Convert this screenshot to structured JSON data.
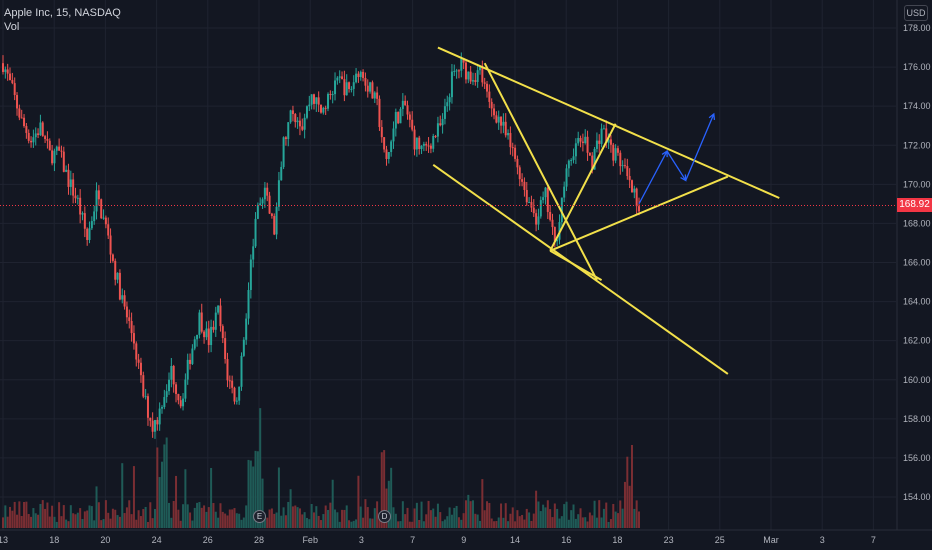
{
  "legend": {
    "symbol": "Apple Inc, 15, NASDAQ",
    "indicator": "Vol"
  },
  "currency": "USD",
  "last_price_tag": "168.92",
  "events": [
    {
      "letter": "E"
    },
    {
      "letter": "D"
    }
  ],
  "colors": {
    "background": "#131722",
    "grid": "#1f2330",
    "up": "#26a69a",
    "down": "#ef5350",
    "volume_up": "#1f5b57",
    "volume_down": "#7a2e33",
    "pattern_lines": "#f2e04a",
    "projection_arrows": "#2962ff",
    "last_price_line": "#f23645"
  },
  "chart_data": {
    "type": "candlestick",
    "title": "Apple Inc, 15, NASDAQ",
    "y_axis": {
      "position": "right",
      "ticks": [
        154,
        156,
        158,
        160,
        162,
        164,
        166,
        168,
        170,
        172,
        174,
        176,
        178
      ],
      "tick_labels": [
        "154.00",
        "156.00",
        "158.00",
        "160.00",
        "162.00",
        "164.00",
        "166.00",
        "168.00",
        "170.00",
        "172.00",
        "174.00",
        "176.00",
        "178.00"
      ],
      "range": [
        152.5,
        179.0
      ]
    },
    "x_axis": {
      "tick_labels": [
        "13",
        "18",
        "20",
        "24",
        "26",
        "28",
        "Feb",
        "3",
        "7",
        "9",
        "14",
        "16",
        "18",
        "23",
        "25",
        "Mar",
        "3",
        "7"
      ]
    },
    "last_price": 168.92,
    "price_path": [
      {
        "t": 0,
        "p": 176.2
      },
      {
        "t": 2,
        "p": 174.8
      },
      {
        "t": 4,
        "p": 173.2
      },
      {
        "t": 6,
        "p": 172.3
      },
      {
        "t": 8,
        "p": 172.9
      },
      {
        "t": 10,
        "p": 171.5
      },
      {
        "t": 12,
        "p": 171.6
      },
      {
        "t": 14,
        "p": 170.2
      },
      {
        "t": 16,
        "p": 169.1
      },
      {
        "t": 18,
        "p": 167.2
      },
      {
        "t": 20,
        "p": 169.4
      },
      {
        "t": 22,
        "p": 167.8
      },
      {
        "t": 24,
        "p": 165.5
      },
      {
        "t": 26,
        "p": 163.6
      },
      {
        "t": 28,
        "p": 162.0
      },
      {
        "t": 30,
        "p": 159.2
      },
      {
        "t": 32,
        "p": 157.6
      },
      {
        "t": 34,
        "p": 158.5
      },
      {
        "t": 36,
        "p": 160.5
      },
      {
        "t": 38,
        "p": 158.8
      },
      {
        "t": 40,
        "p": 161.2
      },
      {
        "t": 42,
        "p": 163.2
      },
      {
        "t": 44,
        "p": 162.0
      },
      {
        "t": 46,
        "p": 163.5
      },
      {
        "t": 48,
        "p": 160.2
      },
      {
        "t": 50,
        "p": 158.8
      },
      {
        "t": 52,
        "p": 163.4
      },
      {
        "t": 54,
        "p": 168.2
      },
      {
        "t": 56,
        "p": 169.5
      },
      {
        "t": 58,
        "p": 167.6
      },
      {
        "t": 60,
        "p": 172.1
      },
      {
        "t": 62,
        "p": 173.8
      },
      {
        "t": 64,
        "p": 173.1
      },
      {
        "t": 66,
        "p": 174.6
      },
      {
        "t": 68,
        "p": 173.7
      },
      {
        "t": 70,
        "p": 174.5
      },
      {
        "t": 72,
        "p": 175.3
      },
      {
        "t": 74,
        "p": 174.7
      },
      {
        "t": 76,
        "p": 175.9
      },
      {
        "t": 78,
        "p": 175.1
      },
      {
        "t": 80,
        "p": 174.0
      },
      {
        "t": 82,
        "p": 171.0
      },
      {
        "t": 84,
        "p": 173.4
      },
      {
        "t": 86,
        "p": 174.0
      },
      {
        "t": 88,
        "p": 172.2
      },
      {
        "t": 90,
        "p": 171.7
      },
      {
        "t": 92,
        "p": 172.4
      },
      {
        "t": 94,
        "p": 173.1
      },
      {
        "t": 96,
        "p": 175.4
      },
      {
        "t": 98,
        "p": 176.1
      },
      {
        "t": 100,
        "p": 175.5
      },
      {
        "t": 102,
        "p": 175.8
      },
      {
        "t": 104,
        "p": 174.0
      },
      {
        "t": 106,
        "p": 173.4
      },
      {
        "t": 108,
        "p": 172.2
      },
      {
        "t": 110,
        "p": 171.0
      },
      {
        "t": 112,
        "p": 169.4
      },
      {
        "t": 114,
        "p": 168.3
      },
      {
        "t": 116,
        "p": 169.4
      },
      {
        "t": 118,
        "p": 166.8
      },
      {
        "t": 120,
        "p": 170.0
      },
      {
        "t": 122,
        "p": 171.8
      },
      {
        "t": 124,
        "p": 172.3
      },
      {
        "t": 126,
        "p": 171.2
      },
      {
        "t": 128,
        "p": 172.9
      },
      {
        "t": 130,
        "p": 171.8
      },
      {
        "t": 132,
        "p": 171.2
      },
      {
        "t": 134,
        "p": 169.9
      },
      {
        "t": 136,
        "p": 168.9
      }
    ],
    "projection_path": [
      {
        "t": 136,
        "p": 169.0
      },
      {
        "t": 142,
        "p": 171.7
      },
      {
        "t": 146,
        "p": 170.2
      },
      {
        "t": 152,
        "p": 173.6
      }
    ],
    "pattern_lines": [
      {
        "from": {
          "t": 93,
          "p": 177.0
        },
        "to": {
          "t": 166,
          "p": 169.3
        }
      },
      {
        "from": {
          "t": 92,
          "p": 171.0
        },
        "to": {
          "t": 155,
          "p": 160.3
        }
      },
      {
        "from": {
          "t": 103,
          "p": 176.2
        },
        "to": {
          "t": 127,
          "p": 165.1
        }
      },
      {
        "from": {
          "t": 117,
          "p": 166.6
        },
        "to": {
          "t": 131,
          "p": 173.1
        }
      },
      {
        "from": {
          "t": 117,
          "p": 166.6
        },
        "to": {
          "t": 155,
          "p": 170.4
        }
      },
      {
        "from": {
          "t": 117,
          "p": 166.6
        },
        "to": {
          "t": 128,
          "p": 165.1
        }
      }
    ]
  }
}
